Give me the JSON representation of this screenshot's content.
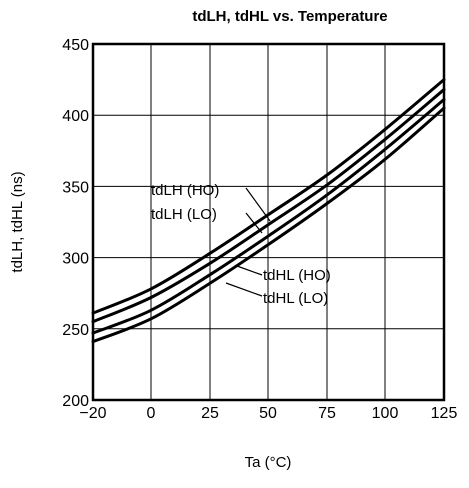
{
  "chart_data": {
    "type": "line",
    "title": "tdLH, tdHL vs. Temperature",
    "xlabel": "Ta (°C)",
    "ylabel": "tdLH, tdHL (ns)",
    "xlim": [
      -20,
      125
    ],
    "ylim": [
      200,
      450
    ],
    "xticks": [
      "−20",
      "0",
      "25",
      "50",
      "75",
      "100",
      "125"
    ],
    "yticks": [
      "200",
      "250",
      "300",
      "350",
      "400",
      "450"
    ],
    "x": [
      -20,
      0,
      25,
      50,
      75,
      100,
      125
    ],
    "grid": true,
    "series": [
      {
        "name": "tdLH (HO)",
        "values": [
          261,
          278,
          303,
          330,
          358,
          390,
          425
        ]
      },
      {
        "name": "tdLH (LO)",
        "values": [
          255,
          272,
          296,
          323,
          351,
          383,
          418
        ]
      },
      {
        "name": "tdHL (HO)",
        "values": [
          247,
          263,
          288,
          315,
          344,
          376,
          411
        ]
      },
      {
        "name": "tdHL (LO)",
        "values": [
          241,
          257,
          282,
          309,
          338,
          369,
          405
        ]
      }
    ]
  }
}
